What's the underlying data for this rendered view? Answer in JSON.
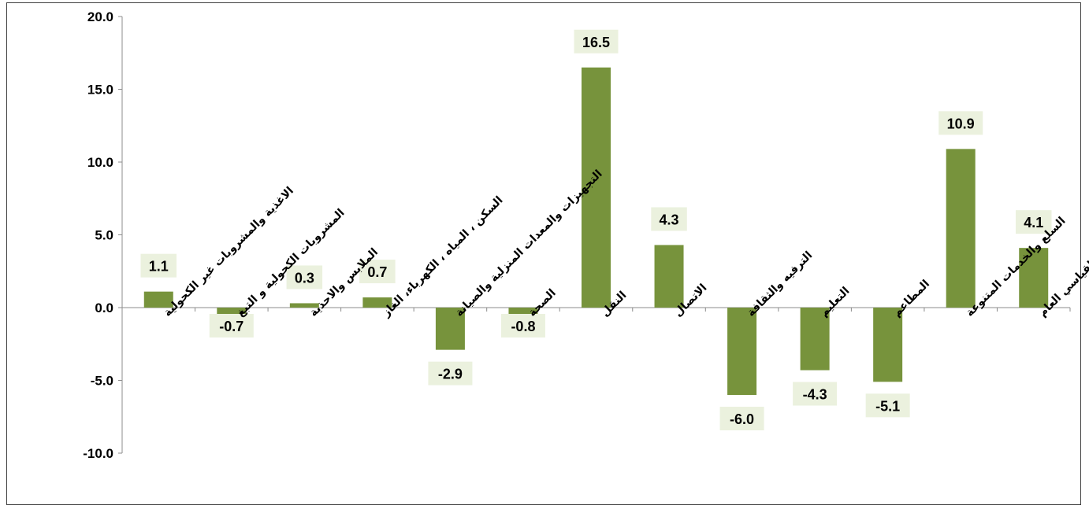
{
  "chart_data": {
    "type": "bar",
    "title": "",
    "xlabel": "",
    "ylabel": "",
    "ylim": [
      -10.0,
      20.0
    ],
    "yticks": [
      "20.0",
      "15.0",
      "10.0",
      "5.0",
      "0.0",
      "-5.0",
      "-10.0"
    ],
    "grid": false,
    "legend": "none",
    "bar_color": "#77933C",
    "label_bg": "#EBF1DE",
    "categories": [
      "الاغذية والمشروبات غير الكحولية",
      "المشروبات الكحولية و التبغ",
      "الملابس والاحذية",
      "السكن ، المياه ، الكهرباء، الغاز",
      "التجهيزات والمعدات المنزلية والصيانة",
      "الصحة",
      "النقل",
      "الاتصال",
      "الترفيه والثقافة",
      "التعليم",
      "المطاعم",
      "السلع والخدمات المتنوعة",
      "الرقم القياسي العام"
    ],
    "values": [
      1.1,
      -0.7,
      0.3,
      0.7,
      -2.9,
      -0.8,
      16.5,
      4.3,
      -6.0,
      -4.3,
      -5.1,
      10.9,
      4.1
    ],
    "data_labels": [
      "1.1",
      "-0.7",
      "0.3",
      "0.7",
      "-2.9",
      "-0.8",
      "16.5",
      "4.3",
      "-6.0",
      "-4.3",
      "-5.1",
      "10.9",
      "4.1"
    ]
  }
}
